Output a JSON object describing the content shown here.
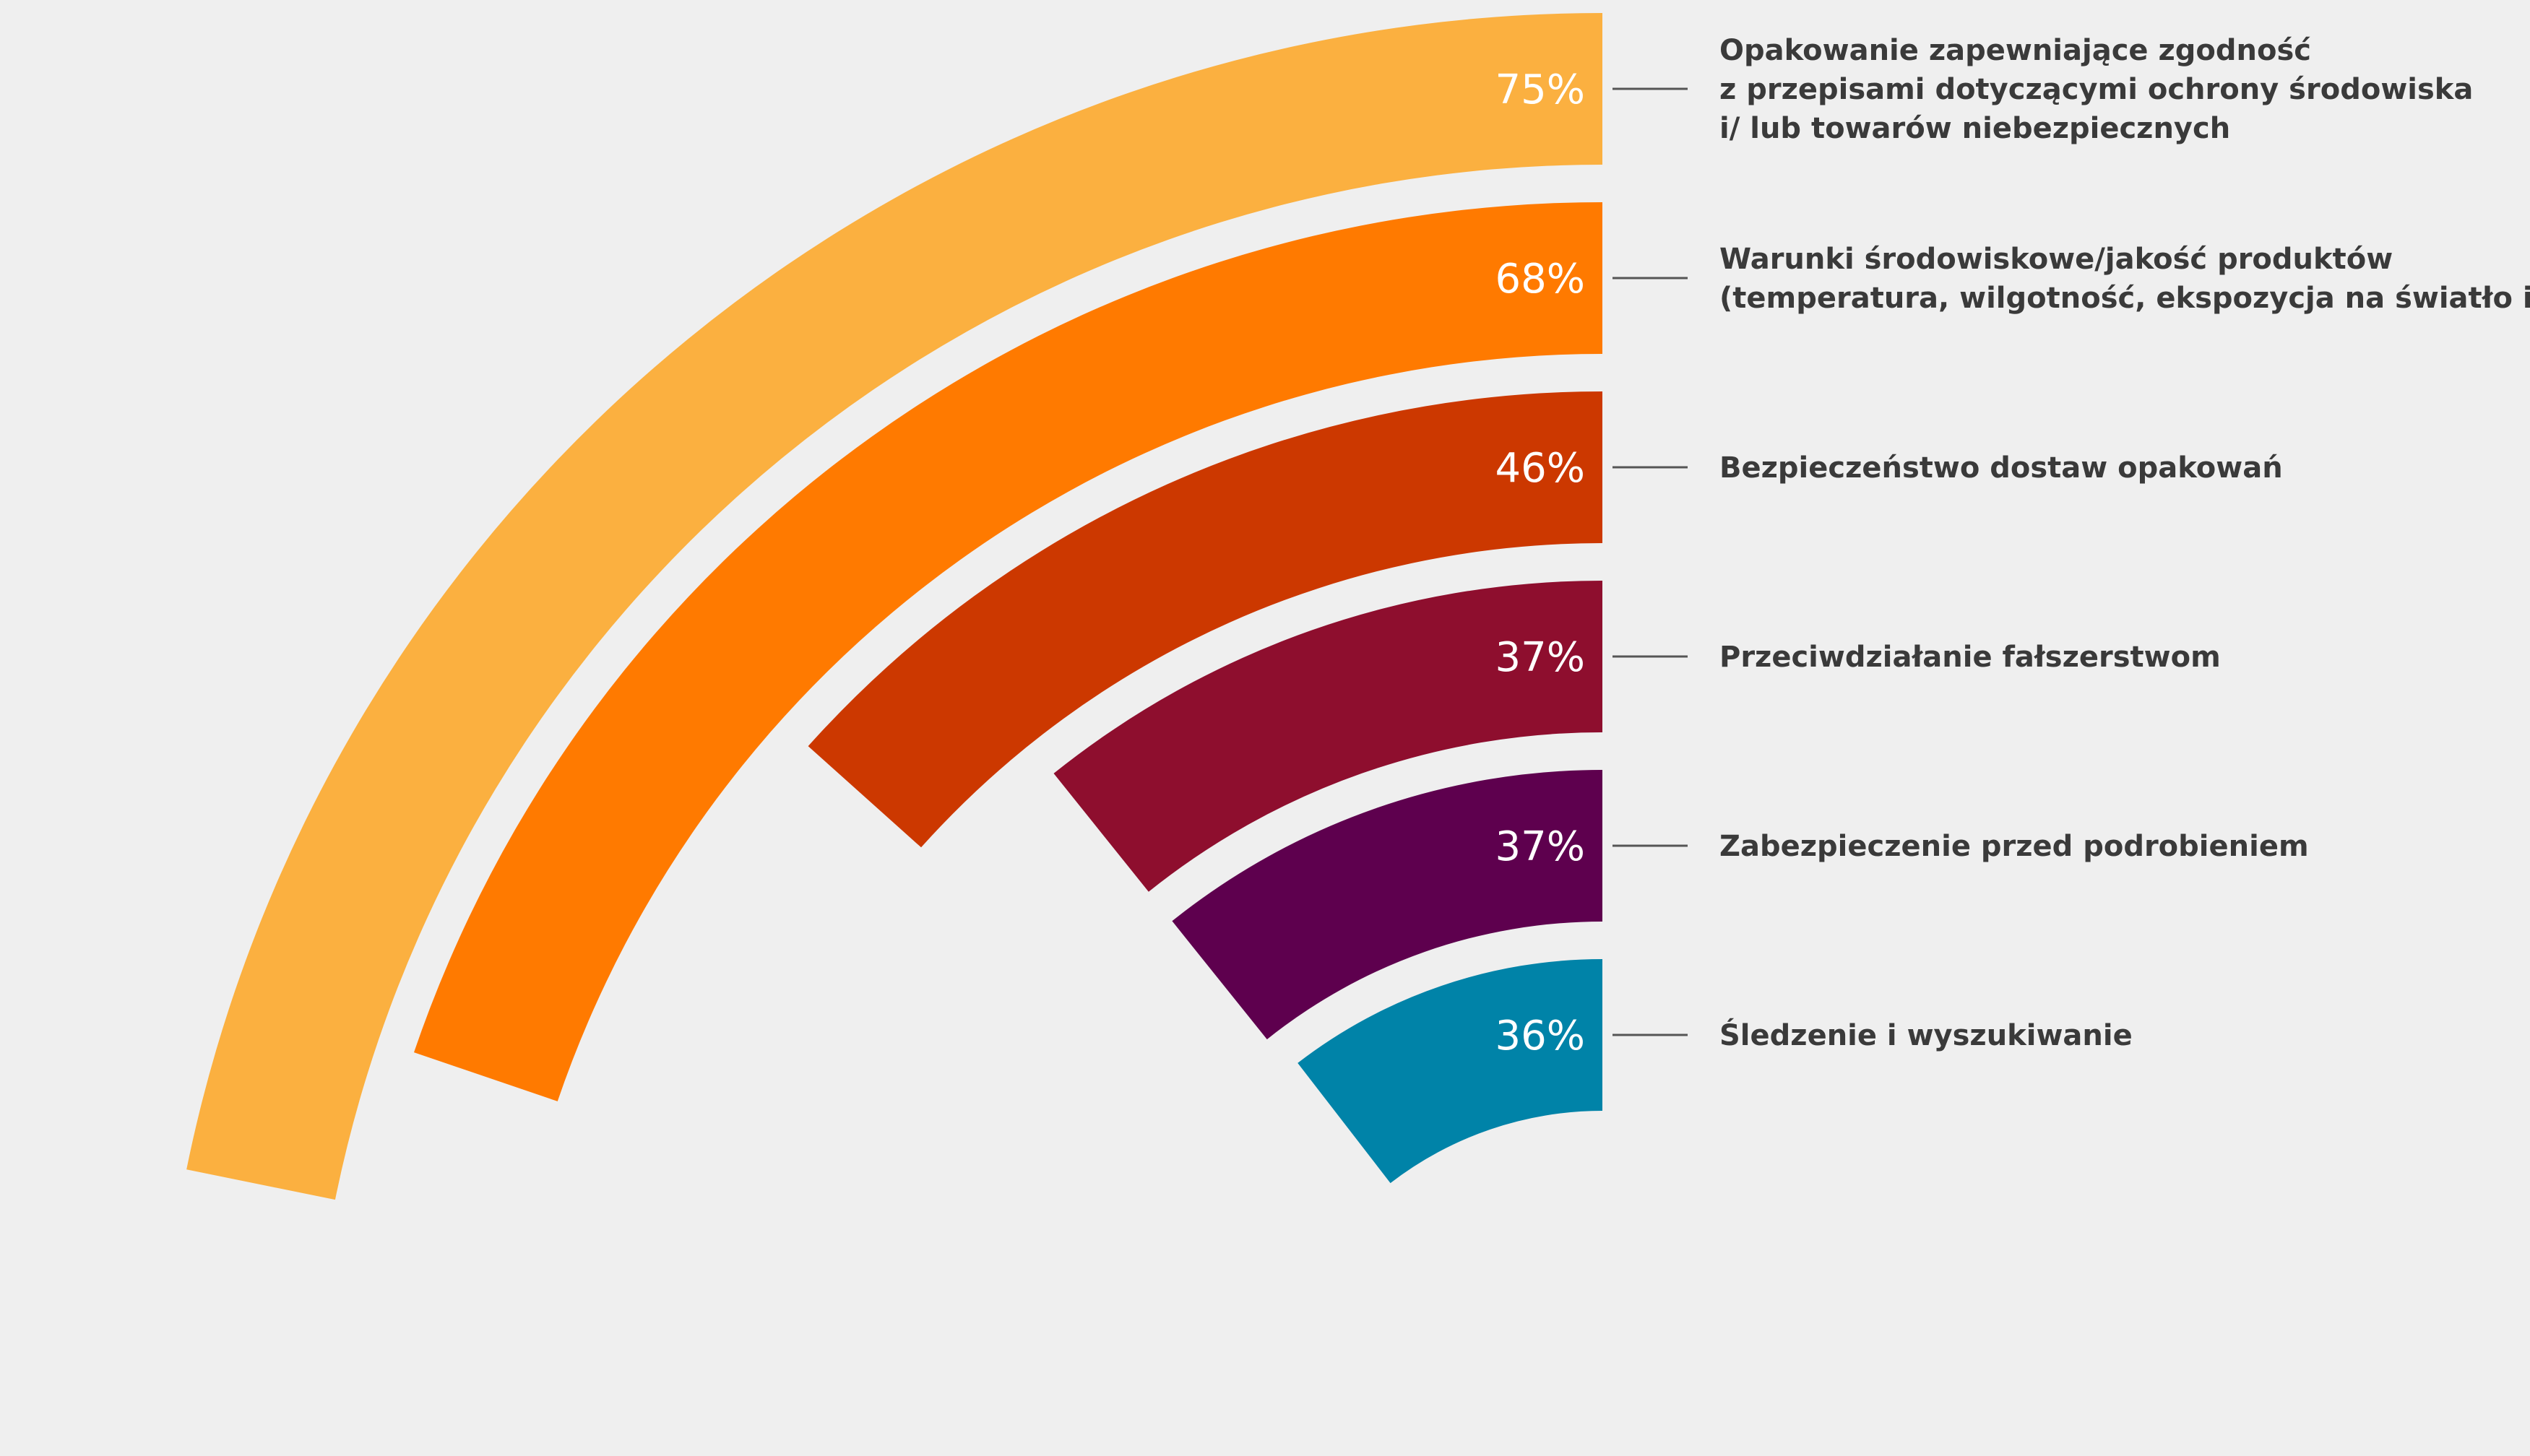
{
  "chart_data": {
    "type": "radial-bar",
    "unit": "%",
    "max": 100,
    "series": [
      {
        "value": 75,
        "label_text": "75%",
        "label": [
          "Opakowanie zapewniające zgodność",
          "z przepisami dotyczącymi ochrony środowiska",
          "i/ lub towarów niebezpiecznych"
        ],
        "color": "#FBB040"
      },
      {
        "value": 68,
        "label_text": "68%",
        "label": [
          "Warunki środowiskowe/jakość produktów",
          "(temperatura, wilgotność, ekspozycja na światło itp.)"
        ],
        "color": "#FF7A00"
      },
      {
        "value": 46,
        "label_text": "46%",
        "label": [
          "Bezpieczeństwo dostaw opakowań"
        ],
        "color": "#CC3800"
      },
      {
        "value": 37,
        "label_text": "37%",
        "label": [
          "Przeciwdziałanie fałszerstwom"
        ],
        "color": "#8E0E2E"
      },
      {
        "value": 37,
        "label_text": "37%",
        "label": [
          "Zabezpieczenie przed podrobieniem"
        ],
        "color": "#5E004E"
      },
      {
        "value": 36,
        "label_text": "36%",
        "label": [
          "Śledzenie i wyszukiwanie"
        ],
        "color": "#0083A8"
      }
    ]
  }
}
